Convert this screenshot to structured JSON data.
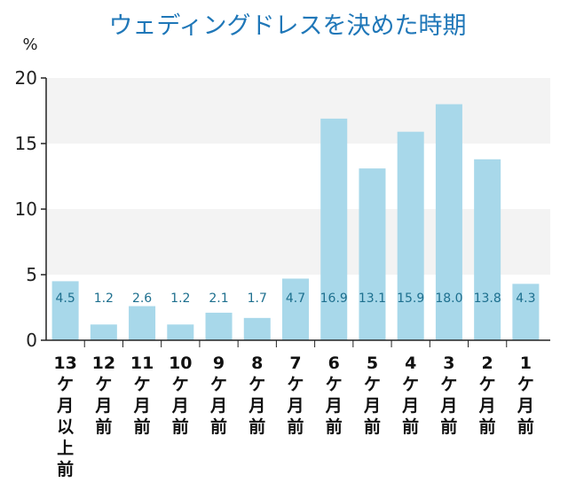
{
  "chart_data": {
    "type": "bar",
    "title": "ウェディングドレスを決めた時期",
    "ylabel": "%",
    "ylim": [
      0,
      20
    ],
    "yticks": [
      0,
      5,
      10,
      15,
      20
    ],
    "categories": [
      [
        "13",
        "ケ",
        "月",
        "以",
        "上",
        "前"
      ],
      [
        "12",
        "ケ",
        "月",
        "前"
      ],
      [
        "11",
        "ケ",
        "月",
        "前"
      ],
      [
        "10",
        "ケ",
        "月",
        "前"
      ],
      [
        "9",
        "ケ",
        "月",
        "前"
      ],
      [
        "8",
        "ケ",
        "月",
        "前"
      ],
      [
        "7",
        "ケ",
        "月",
        "前"
      ],
      [
        "6",
        "ケ",
        "月",
        "前"
      ],
      [
        "5",
        "ケ",
        "月",
        "前"
      ],
      [
        "4",
        "ケ",
        "月",
        "前"
      ],
      [
        "3",
        "ケ",
        "月",
        "前"
      ],
      [
        "2",
        "ケ",
        "月",
        "前"
      ],
      [
        "1",
        "ケ",
        "月",
        "前"
      ]
    ],
    "values": [
      4.5,
      1.2,
      2.6,
      1.2,
      2.1,
      1.7,
      4.7,
      16.9,
      13.1,
      15.9,
      18.0,
      13.8,
      4.3
    ],
    "value_labels": [
      "4.5",
      "1.2",
      "2.6",
      "1.2",
      "2.1",
      "1.7",
      "4.7",
      "16.9",
      "13.1",
      "15.9",
      "18.0",
      "13.8",
      "4.3"
    ],
    "grid_bands": [
      [
        5,
        10
      ],
      [
        15,
        20
      ]
    ],
    "colors": {
      "bar": "#a8d8ea",
      "band": "#f3f3f3",
      "title": "#1f77b8",
      "value_label": "#1d6f8e",
      "axis": "#222222"
    }
  }
}
